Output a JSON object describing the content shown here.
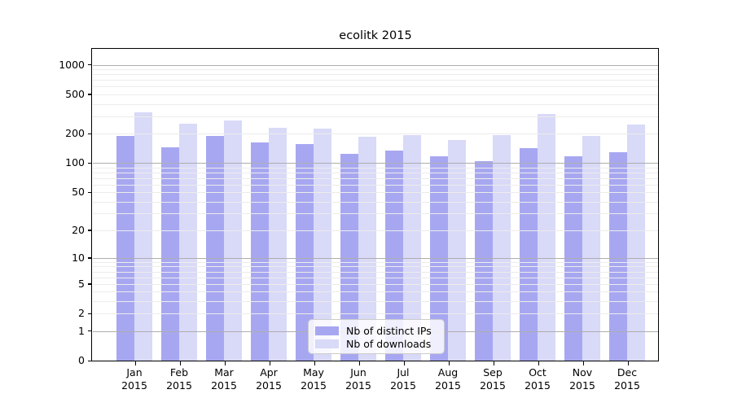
{
  "title": "ecolitk 2015",
  "chart_data": {
    "type": "bar",
    "title": "ecolitk 2015",
    "categories": [
      "Jan",
      "Feb",
      "Mar",
      "Apr",
      "May",
      "Jun",
      "Jul",
      "Aug",
      "Sep",
      "Oct",
      "Nov",
      "Dec"
    ],
    "year": "2015",
    "series": [
      {
        "name": "Nb of distinct IPs",
        "color": "#a7a7f1",
        "values": [
          190,
          145,
          190,
          163,
          157,
          125,
          133,
          118,
          105,
          143,
          118,
          130
        ]
      },
      {
        "name": "Nb of downloads",
        "color": "#d9d9f8",
        "values": [
          330,
          250,
          272,
          230,
          224,
          184,
          194,
          171,
          193,
          318,
          188,
          248
        ]
      }
    ],
    "yscale": "log1p",
    "yticks": [
      0,
      1,
      2,
      5,
      10,
      20,
      50,
      100,
      200,
      500,
      1000
    ],
    "ylim": [
      0,
      1450
    ],
    "xlabel": "",
    "ylabel": "",
    "grid": {
      "major_color": "#aeaeae",
      "minor_color": "#ececec",
      "major_at": [
        1,
        10,
        100,
        1000
      ]
    },
    "legend_position": "lower center",
    "background": "#ffffff",
    "text_color": "#000000"
  }
}
